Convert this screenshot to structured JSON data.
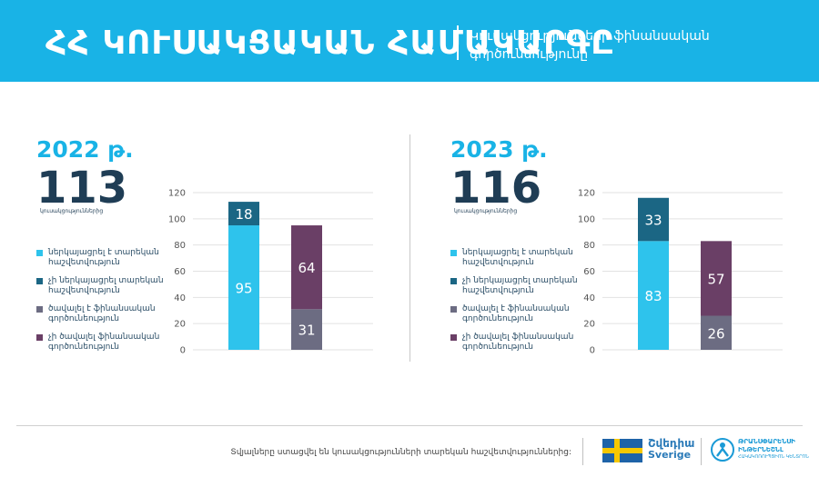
{
  "header": {
    "title": "ՀՀ ԿՈՒՍԱԿՑԱԿԱՆ ՀԱՄԱԿԱՐԳԸ",
    "subtitle": "Կուսակցությունների ֆինանսական գործունեությունը"
  },
  "colors": {
    "accent": "#19b3e6",
    "submitted": "#2ec3ec",
    "not_submitted": "#1b6684",
    "disclosed": "#6c6c82",
    "not_disclosed": "#6a3f66"
  },
  "legend": [
    {
      "label": "ներկայացրել է տարեկան հաշվետվություն",
      "color": "#2ec3ec"
    },
    {
      "label": "չի ներկայացրել տարեկան հաշվետվություն",
      "color": "#1b6684"
    },
    {
      "label": "ծավալել է ֆինանսական գործունեություն",
      "color": "#6c6c82"
    },
    {
      "label": "չի ծավալել ֆինանսական գործունեություն",
      "color": "#6a3f66"
    }
  ],
  "panels": [
    {
      "year": "2022 թ.",
      "total": "113",
      "total_caption": "կուսակցություններից"
    },
    {
      "year": "2023 թ.",
      "total": "116",
      "total_caption": "կուսակցություններից"
    }
  ],
  "chart_data": [
    {
      "type": "bar",
      "stacked": true,
      "title": "2022 թ.",
      "categories": [
        "",
        ""
      ],
      "stacks": [
        [
          {
            "value": 95,
            "color": "#2ec3ec"
          },
          {
            "value": 18,
            "color": "#1b6684"
          }
        ],
        [
          {
            "value": 31,
            "color": "#6c6c82"
          },
          {
            "value": 64,
            "color": "#6a3f66"
          }
        ]
      ],
      "yticks": [
        "0",
        "20",
        "40",
        "60",
        "80",
        "100",
        "120"
      ],
      "ylim": [
        0,
        120
      ],
      "grid": true
    },
    {
      "type": "bar",
      "stacked": true,
      "title": "2023 թ.",
      "categories": [
        "",
        ""
      ],
      "stacks": [
        [
          {
            "value": 83,
            "color": "#2ec3ec"
          },
          {
            "value": 33,
            "color": "#1b6684"
          }
        ],
        [
          {
            "value": 26,
            "color": "#6c6c82"
          },
          {
            "value": 57,
            "color": "#6a3f66"
          }
        ]
      ],
      "yticks": [
        "0",
        "20",
        "40",
        "60",
        "80",
        "100",
        "120"
      ],
      "ylim": [
        0,
        120
      ],
      "grid": true
    }
  ],
  "footer": {
    "note": "Տվյալները ստացվել են կուսակցությունների տարեկան հաշվետվություններից:",
    "sweden_name": "Շվեդիա",
    "sweden_sub": "Sverige",
    "ti_name": "ԹՐԱՆՍՓԱՐԵՆՍԻ ԻՆԹԵՐՆԵՇՆԼ",
    "ti_sub": "ՀԱԿԱԿՈՌՈՒՊՑԻՈՆ ԿԵՆՏՐՈՆ"
  }
}
